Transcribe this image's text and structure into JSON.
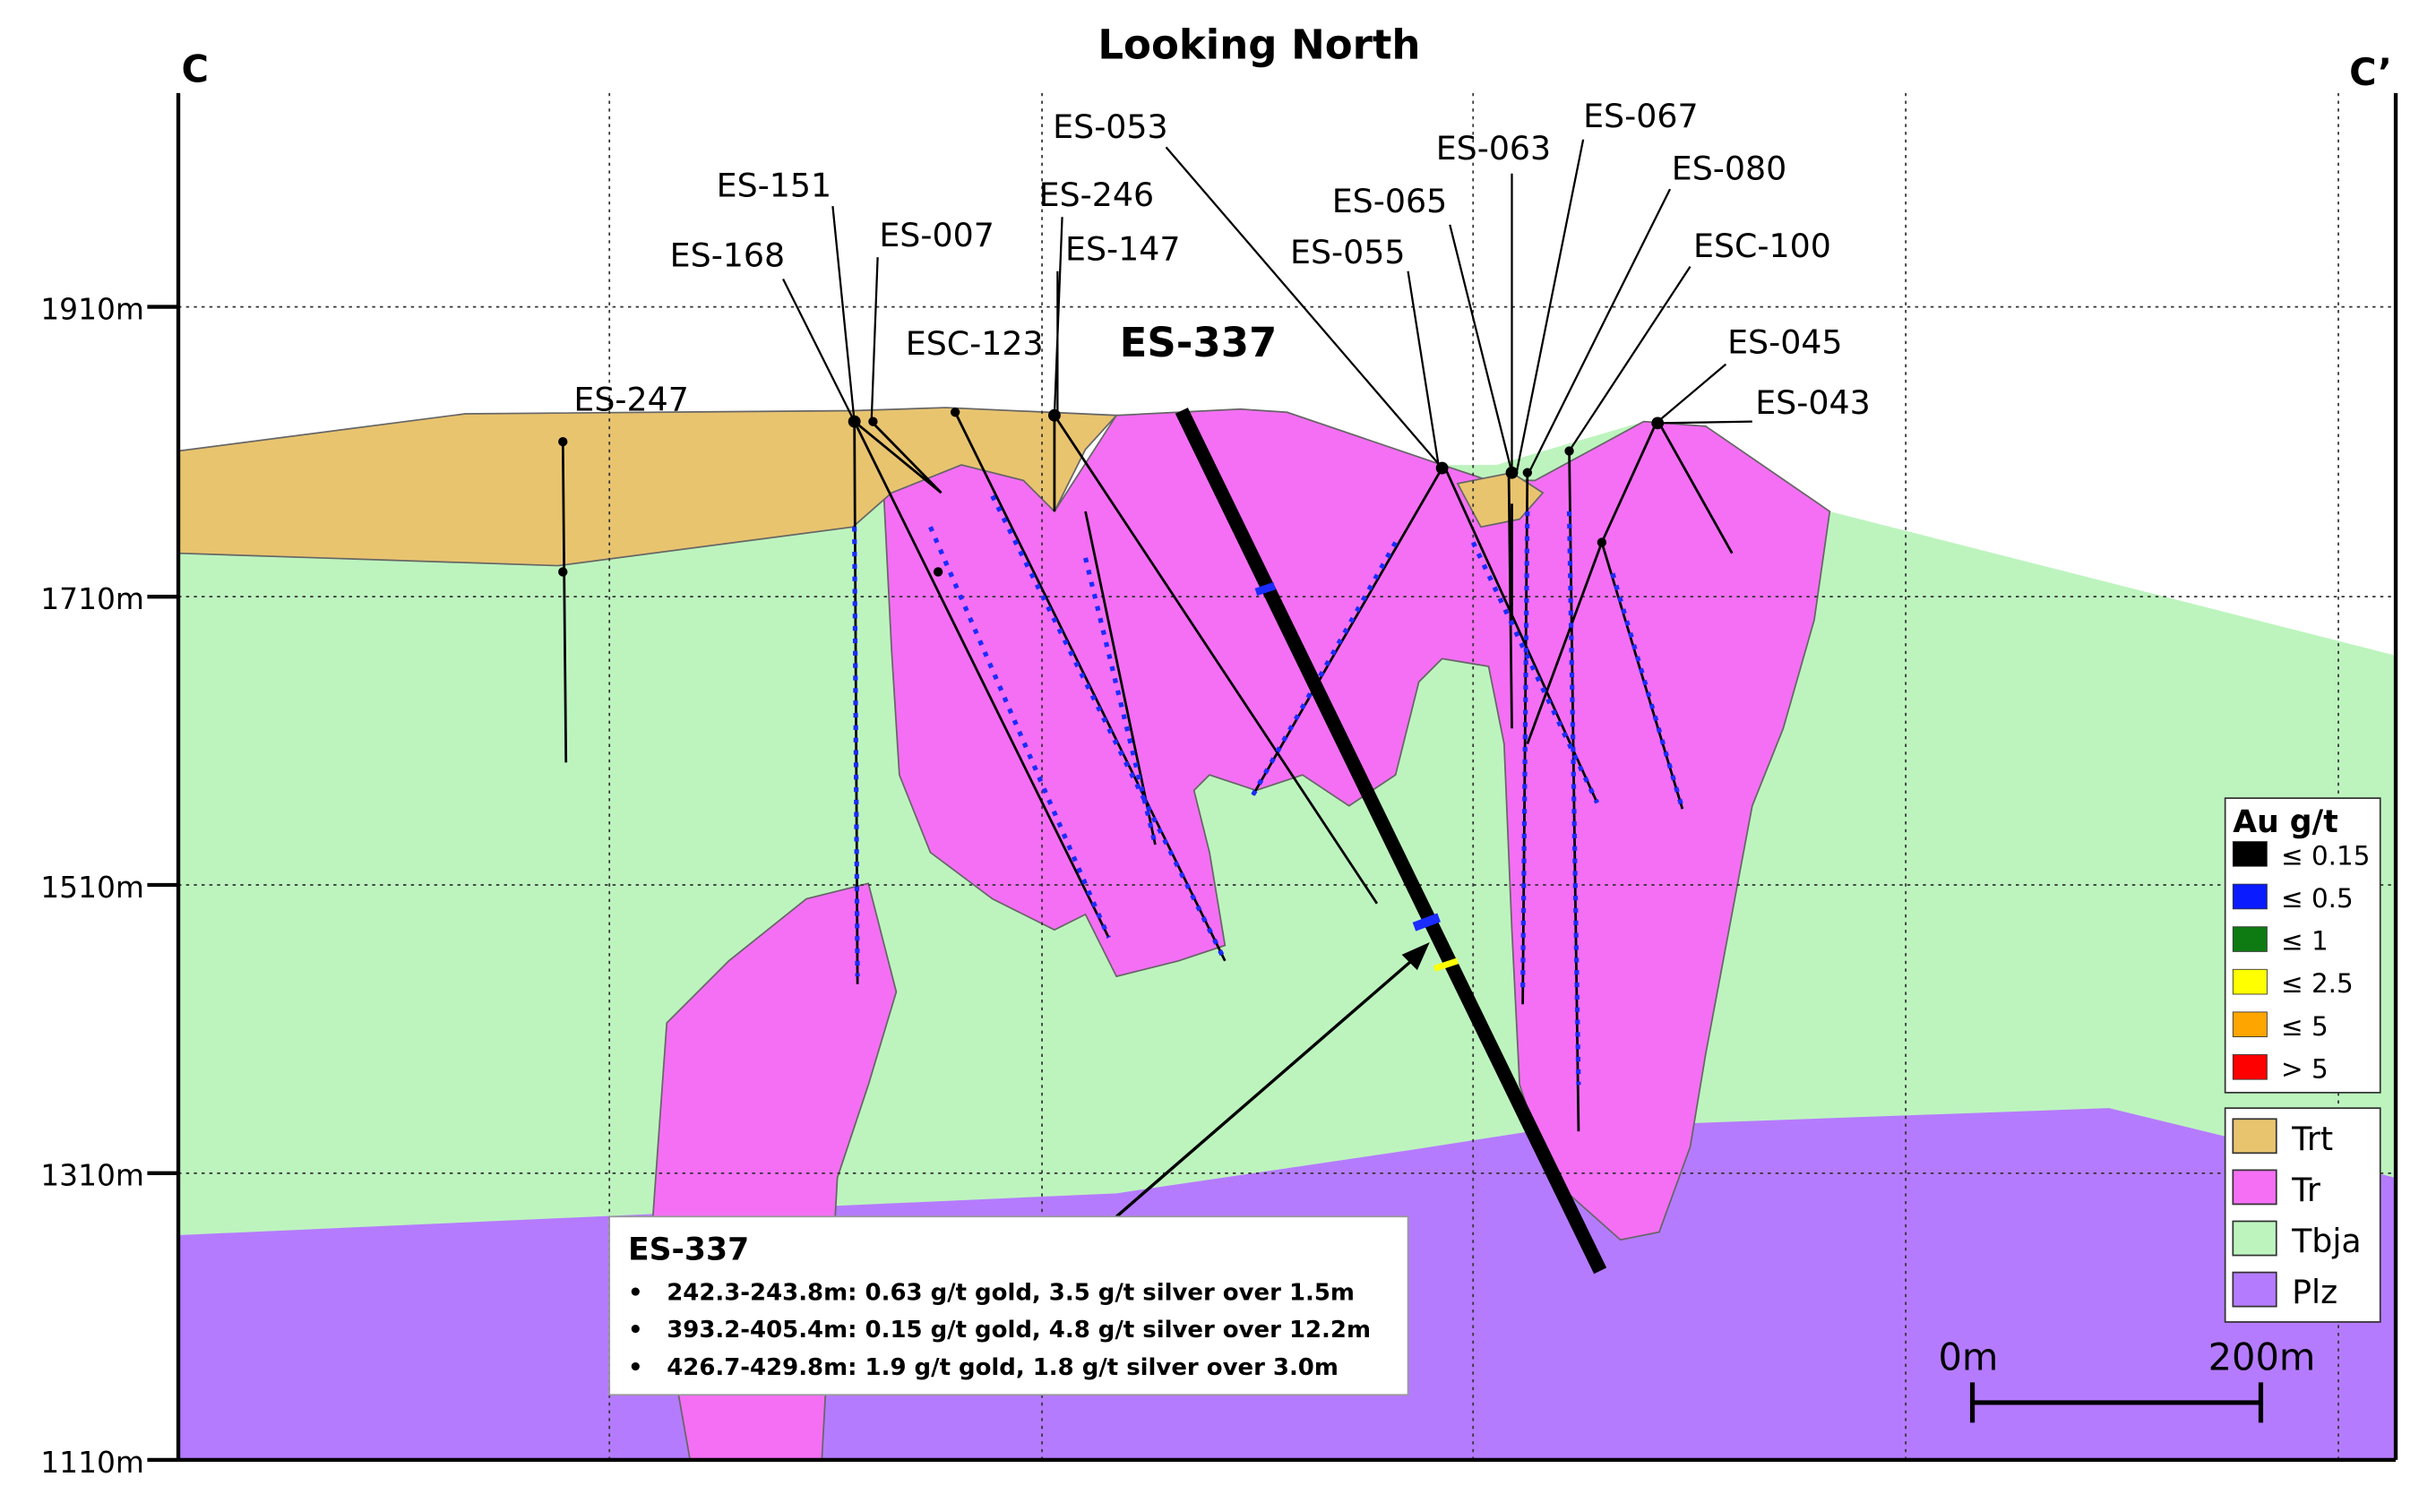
{
  "header": {
    "title": "Looking North"
  },
  "section_ends": [
    "C",
    "C’"
  ],
  "elevation_labels": [
    "1910m",
    "1710m",
    "1510m",
    "1310m",
    "1110m"
  ],
  "drill_holes": [
    "ES-247",
    "ES-168",
    "ES-151",
    "ES-007",
    "ESC-123",
    "ES-246",
    "ES-147",
    "ES-053",
    "ES-055",
    "ES-065",
    "ES-063",
    "ES-067",
    "ES-080",
    "ESC-100",
    "ES-045",
    "ES-043"
  ],
  "highlight_hole": "ES-337",
  "callout": {
    "title": "ES-337",
    "items": [
      "242.3-243.8m: 0.63 g/t gold, 3.5 g/t silver over 1.5m",
      "393.2-405.4m: 0.15 g/t gold, 4.8 g/t silver over 12.2m",
      "426.7-429.8m: 1.9 g/t gold, 1.8 g/t silver over 3.0m"
    ]
  },
  "legend_grade": {
    "title": "Au g/t",
    "items": [
      {
        "label": "≤ 0.15",
        "color": "#000000"
      },
      {
        "label": "≤ 0.5",
        "color": "#0a1cff"
      },
      {
        "label": "≤ 1",
        "color": "#0e7a12"
      },
      {
        "label": "≤ 2.5",
        "color": "#ffff00"
      },
      {
        "label": "≤ 5",
        "color": "#ffa500"
      },
      {
        "label": "> 5",
        "color": "#ff0000"
      }
    ]
  },
  "legend_units": {
    "items": [
      {
        "label": "Trt",
        "color": "#e9c46f"
      },
      {
        "label": "Tr",
        "color": "#f46ff4"
      },
      {
        "label": "Tbja",
        "color": "#bdf4be"
      },
      {
        "label": "Plz",
        "color": "#b57bff"
      }
    ]
  },
  "scale_bar": {
    "labels": [
      "0m",
      "200m"
    ]
  }
}
